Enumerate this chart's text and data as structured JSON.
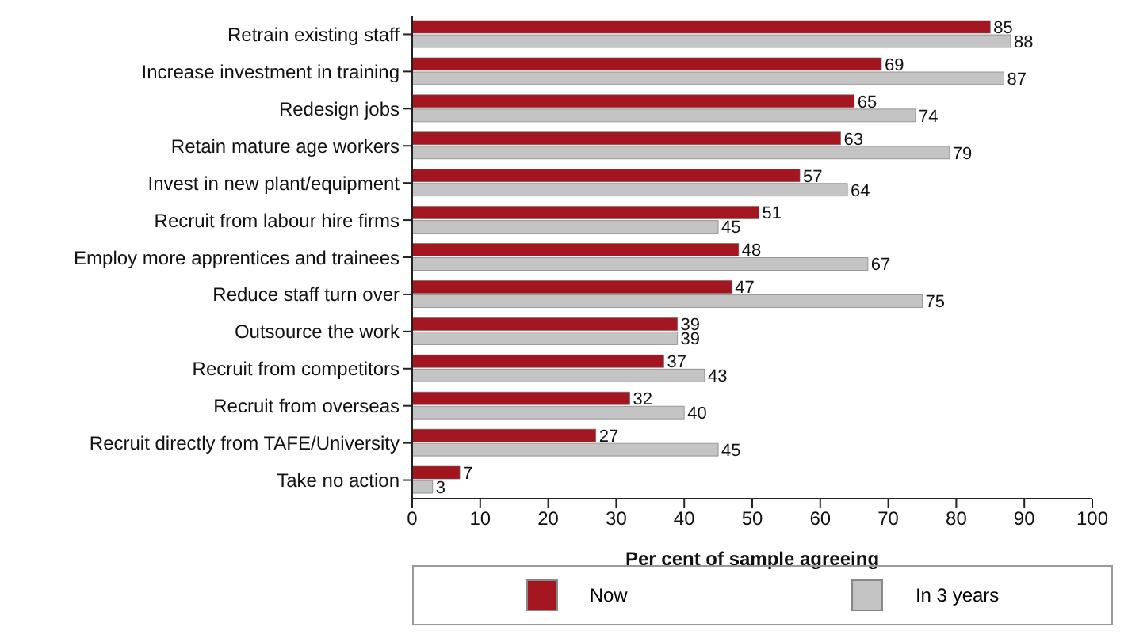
{
  "chart_data": {
    "type": "bar",
    "orientation": "horizontal",
    "xlabel": "Per cent of sample agreeing",
    "categories": [
      "Retrain existing staff",
      "Increase investment in training",
      "Redesign jobs",
      "Retain mature age workers",
      "Invest in new plant/equipment",
      "Recruit from labour hire firms",
      "Employ more apprentices and trainees",
      "Reduce staff turn over",
      "Outsource the work",
      "Recruit from competitors",
      "Recruit from overseas",
      "Recruit directly from TAFE/University",
      "Take no action"
    ],
    "series": [
      {
        "name": "Now",
        "color": "#a3161f",
        "values": [
          85,
          69,
          65,
          63,
          57,
          51,
          48,
          47,
          39,
          37,
          32,
          27,
          7
        ]
      },
      {
        "name": "In 3 years",
        "color": "#c4c4c4",
        "values": [
          88,
          87,
          74,
          79,
          64,
          45,
          67,
          75,
          39,
          43,
          40,
          45,
          3
        ]
      }
    ],
    "xlim": [
      0,
      100
    ],
    "xticks": [
      0,
      10,
      20,
      30,
      40,
      50,
      60,
      70,
      80,
      90,
      100
    ],
    "data_labels": true,
    "legend": "bottom",
    "grid": false
  }
}
